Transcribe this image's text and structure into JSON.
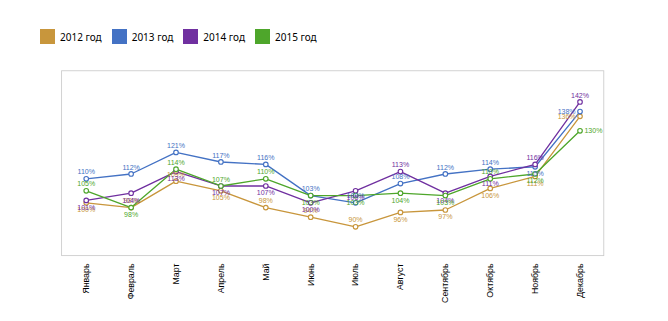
{
  "chart_data": {
    "type": "line",
    "categories": [
      "Январь",
      "Февраль",
      "Март",
      "Апрель",
      "Май",
      "Июнь",
      "Июль",
      "Август",
      "Сентябрь",
      "Октябрь",
      "Ноябрь",
      "Декабрь"
    ],
    "series": [
      {
        "name": "2012 год",
        "color": "#C8963C",
        "marker": "o",
        "values": [
          100,
          98,
          109,
          105,
          98,
          94,
          90,
          96,
          97,
          106,
          111,
          136
        ],
        "value_labels": [
          "100%",
          "98%",
          "109%",
          "105%",
          "98%",
          "94%",
          "90%",
          "96%",
          "97%",
          "106%",
          "111%",
          "136%"
        ]
      },
      {
        "name": "2013 год",
        "color": "#4472C4",
        "marker": "o",
        "values": [
          110,
          112,
          121,
          117,
          116,
          103,
          100,
          108,
          112,
          114,
          115,
          138
        ],
        "value_labels": [
          "110%",
          "112%",
          "121%",
          "117%",
          "116%",
          "103%",
          "100%",
          "108%",
          "112%",
          "114%",
          "115%",
          "138%"
        ]
      },
      {
        "name": "2014 год",
        "color": "#7030A0",
        "marker": "o",
        "values": [
          101,
          104,
          113,
          107,
          107,
          100,
          105,
          113,
          104,
          111,
          116,
          142
        ],
        "value_labels": [
          "101%",
          "104%",
          "113%",
          "107%",
          "107%",
          "100%",
          "105%",
          "113%",
          "104%",
          "111%",
          "116%",
          "142%"
        ]
      },
      {
        "name": "2015 год",
        "color": "#4EA62B",
        "marker": "o",
        "values": [
          105,
          98,
          114,
          107,
          110,
          103,
          103,
          104,
          103,
          110,
          112,
          130
        ],
        "value_labels": [
          "105%",
          "98%",
          "114%",
          "107%",
          "110%",
          "103%",
          "103%",
          "104%",
          "103%",
          "110%",
          "112%",
          "130%"
        ]
      }
    ],
    "ylim": [
      78,
      155
    ],
    "data_labels": true,
    "tick_labels": "x",
    "legend": "top",
    "grid": false
  }
}
